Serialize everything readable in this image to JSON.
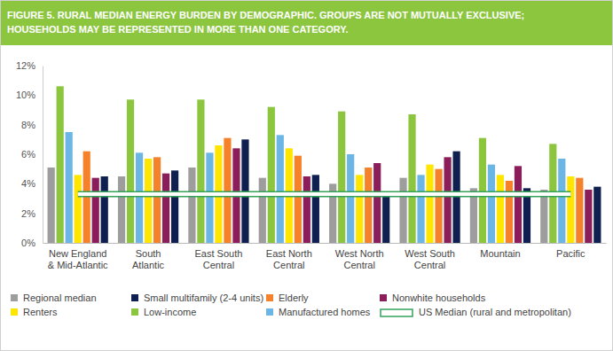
{
  "chart_data": {
    "type": "bar",
    "title": "FIGURE 5. RURAL MEDIAN ENERGY BURDEN BY DEMOGRAPHIC. GROUPS ARE NOT MUTUALLY EXCLUSIVE; HOUSEHOLDS MAY BE REPRESENTED IN MORE THAN ONE CATEGORY.",
    "categories": [
      "New England & Mid-Atlantic",
      "South Atlantic",
      "East South Central",
      "East North Central",
      "West North Central",
      "West South Central",
      "Mountain",
      "Pacific"
    ],
    "series": [
      {
        "name": "Regional median",
        "color": "#9d9d9d",
        "values": [
          5.1,
          4.5,
          5.1,
          4.4,
          4.0,
          4.4,
          3.7,
          3.6
        ]
      },
      {
        "name": "Low-income",
        "color": "#8cc63f",
        "values": [
          10.6,
          9.7,
          9.7,
          9.2,
          8.9,
          8.7,
          7.1,
          6.7
        ]
      },
      {
        "name": "Manufactured homes",
        "color": "#6cb6e6",
        "values": [
          7.5,
          6.1,
          6.1,
          7.3,
          6.0,
          4.6,
          5.3,
          5.7
        ]
      },
      {
        "name": "Renters",
        "color": "#ffe500",
        "values": [
          4.6,
          5.7,
          6.6,
          6.4,
          4.6,
          5.3,
          4.6,
          4.5
        ]
      },
      {
        "name": "Elderly",
        "color": "#f5822a",
        "values": [
          6.2,
          5.8,
          7.1,
          5.9,
          5.1,
          5.0,
          4.2,
          4.4
        ]
      },
      {
        "name": "Nonwhite households",
        "color": "#8b1d5b",
        "values": [
          4.4,
          4.7,
          6.4,
          4.5,
          5.4,
          5.8,
          5.2,
          3.6
        ]
      },
      {
        "name": "Small multifamily (2-4 units)",
        "color": "#0e1f50",
        "values": [
          4.5,
          4.9,
          7.0,
          4.6,
          3.2,
          6.2,
          3.7,
          3.8
        ]
      },
      {
        "name": "US Median (rural and metropolitan)",
        "color": "#35a25a",
        "type": "line",
        "values": [
          3.3,
          3.3,
          3.3,
          3.3,
          3.3,
          3.3,
          3.3,
          3.3
        ]
      }
    ],
    "ylim": [
      0,
      12
    ],
    "yticks": [
      {
        "value": 0,
        "label": "0%"
      },
      {
        "value": 2,
        "label": "2%"
      },
      {
        "value": 4,
        "label": "4%"
      },
      {
        "value": 6,
        "label": "6%"
      },
      {
        "value": 8,
        "label": "8%"
      },
      {
        "value": 10,
        "label": "10%"
      },
      {
        "value": 12,
        "label": "12%"
      }
    ],
    "grid": false,
    "legend": "bottom"
  }
}
